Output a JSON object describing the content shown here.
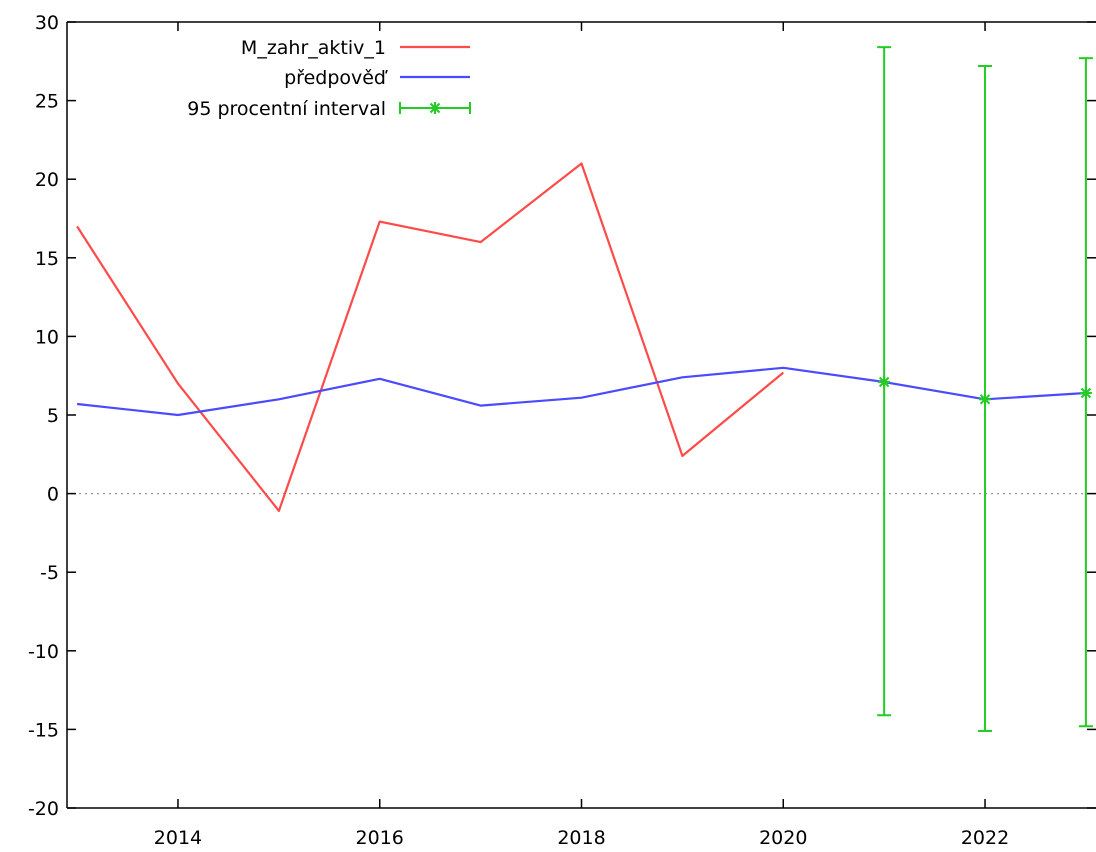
{
  "chart_data": {
    "type": "line",
    "title": "",
    "xlabel": "",
    "ylabel": "",
    "xlim": [
      2012.9,
      2023.1
    ],
    "ylim": [
      -20,
      30
    ],
    "x_ticks": [
      "2014",
      "2016",
      "2018",
      "2020",
      "2022"
    ],
    "y_ticks": [
      "30",
      "25",
      "20",
      "15",
      "10",
      "5",
      "0",
      "-5",
      "-10",
      "-15",
      "-20"
    ],
    "zero_line": true,
    "grid": false,
    "legend_position": "top-left",
    "series": [
      {
        "name": "M_zahr_aktiv_1",
        "color": "#ff4a4a",
        "kind": "line",
        "x": [
          2013,
          2014,
          2015,
          2016,
          2017,
          2018,
          2019,
          2020
        ],
        "y": [
          17.0,
          7.0,
          -1.1,
          17.3,
          16.0,
          21.0,
          2.4,
          7.7
        ]
      },
      {
        "name": "předpověď",
        "color": "#4a4aff",
        "kind": "line",
        "x": [
          2013,
          2014,
          2015,
          2016,
          2017,
          2018,
          2019,
          2020,
          2021,
          2022,
          2023
        ],
        "y": [
          5.7,
          5.0,
          6.0,
          7.3,
          5.6,
          6.1,
          7.4,
          8.0,
          7.1,
          6.0,
          6.4
        ]
      },
      {
        "name": "95 procentní interval",
        "color": "#22cc22",
        "kind": "errorbar",
        "x": [
          2021,
          2022,
          2023
        ],
        "y": [
          7.1,
          6.0,
          6.4
        ],
        "low": [
          -14.1,
          -15.1,
          -14.8
        ],
        "high": [
          28.4,
          27.2,
          27.7
        ]
      }
    ]
  }
}
